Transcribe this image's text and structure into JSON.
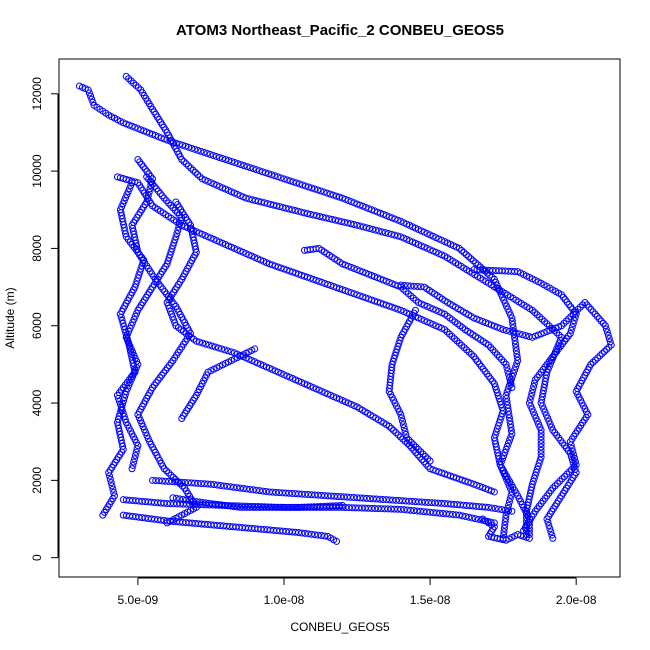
{
  "chart_data": {
    "type": "scatter",
    "title": "ATOM3 Northeast_Pacific_2 CONBEU_GEOS5",
    "xlabel": "CONBEU_GEOS5",
    "ylabel": "Altitude (m)",
    "xlim": [
      2.3e-09,
      2.15e-08
    ],
    "ylim": [
      -500,
      12900
    ],
    "x_ticks": [
      5e-09,
      1e-08,
      1.5e-08,
      2e-08
    ],
    "x_tick_labels": [
      "5.0e-09",
      "1.0e-08",
      "1.5e-08",
      "2.0e-08"
    ],
    "y_ticks": [
      0,
      2000,
      4000,
      6000,
      8000,
      10000,
      12000
    ],
    "y_tick_labels": [
      "0",
      "2000",
      "4000",
      "6000",
      "8000",
      "10000",
      "12000"
    ],
    "marker": "open-circle",
    "color": "#0000ff",
    "profiles": [
      {
        "points": [
          [
            3e-09,
            12200
          ],
          [
            3.3e-09,
            12100
          ],
          [
            3.5e-09,
            11700
          ],
          [
            4e-09,
            11450
          ],
          [
            4.5e-09,
            11250
          ],
          [
            6e-09,
            10800
          ],
          [
            8e-09,
            10300
          ],
          [
            1e-08,
            9800
          ],
          [
            1.2e-08,
            9300
          ],
          [
            1.4e-08,
            8700
          ],
          [
            1.6e-08,
            8000
          ],
          [
            1.72e-08,
            7200
          ],
          [
            1.78e-08,
            6200
          ],
          [
            1.8e-08,
            5100
          ],
          [
            1.76e-08,
            4200
          ],
          [
            1.78e-08,
            3200
          ],
          [
            1.74e-08,
            2400
          ],
          [
            1.8e-08,
            1600
          ],
          [
            1.84e-08,
            1000
          ],
          [
            1.84e-08,
            600
          ]
        ]
      },
      {
        "points": [
          [
            4.6e-09,
            12450
          ],
          [
            5.1e-09,
            12100
          ],
          [
            5.5e-09,
            11600
          ],
          [
            6e-09,
            11000
          ],
          [
            6.5e-09,
            10300
          ],
          [
            7.2e-09,
            9800
          ],
          [
            8.7e-09,
            9300
          ],
          [
            1.08e-08,
            8900
          ],
          [
            1.25e-08,
            8600
          ],
          [
            1.4e-08,
            8300
          ],
          [
            1.55e-08,
            7800
          ],
          [
            1.7e-08,
            7100
          ],
          [
            1.85e-08,
            6400
          ],
          [
            1.95e-08,
            5700
          ],
          [
            1.9e-08,
            4800
          ],
          [
            1.88e-08,
            4000
          ],
          [
            1.92e-08,
            3300
          ],
          [
            1.98e-08,
            2700
          ],
          [
            2e-08,
            2200
          ],
          [
            1.95e-08,
            1600
          ],
          [
            1.9e-08,
            1000
          ],
          [
            1.92e-08,
            500
          ]
        ]
      },
      {
        "points": [
          [
            4.3e-09,
            9850
          ],
          [
            5e-09,
            9700
          ],
          [
            5.5e-09,
            9100
          ],
          [
            6.5e-09,
            8600
          ],
          [
            8e-09,
            8100
          ],
          [
            9.5e-09,
            7600
          ],
          [
            1.1e-08,
            7200
          ],
          [
            1.25e-08,
            6800
          ],
          [
            1.4e-08,
            6400
          ],
          [
            1.55e-08,
            5900
          ],
          [
            1.65e-08,
            5200
          ],
          [
            1.72e-08,
            4500
          ],
          [
            1.75e-08,
            3800
          ],
          [
            1.72e-08,
            3100
          ],
          [
            1.74e-08,
            2400
          ],
          [
            1.78e-08,
            1700
          ],
          [
            1.76e-08,
            1100
          ],
          [
            1.75e-08,
            500
          ]
        ]
      },
      {
        "points": [
          [
            5e-09,
            10300
          ],
          [
            5.5e-09,
            9800
          ],
          [
            5.3e-09,
            9200
          ],
          [
            4.8e-09,
            8600
          ],
          [
            5e-09,
            7900
          ],
          [
            5.6e-09,
            7200
          ],
          [
            6.3e-09,
            6500
          ],
          [
            6.8e-09,
            5800
          ],
          [
            6.2e-09,
            5100
          ],
          [
            5.5e-09,
            4400
          ],
          [
            5e-09,
            3700
          ],
          [
            5.4e-09,
            3000
          ],
          [
            5.9e-09,
            2300
          ],
          [
            6.6e-09,
            1800
          ],
          [
            7e-09,
            1300
          ],
          [
            6e-09,
            900
          ]
        ]
      },
      {
        "points": [
          [
            5.3e-09,
            9850
          ],
          [
            5.9e-09,
            9300
          ],
          [
            6.5e-09,
            8800
          ],
          [
            6.3e-09,
            8300
          ],
          [
            6e-09,
            7600
          ],
          [
            5.5e-09,
            7000
          ],
          [
            5e-09,
            6400
          ],
          [
            4.6e-09,
            5700
          ],
          [
            5e-09,
            5000
          ],
          [
            4.6e-09,
            4300
          ],
          [
            4.3e-09,
            3500
          ],
          [
            4.5e-09,
            2800
          ],
          [
            4e-09,
            2200
          ],
          [
            4.2e-09,
            1600
          ],
          [
            3.8e-09,
            1100
          ]
        ]
      },
      {
        "points": [
          [
            4.8e-09,
            9700
          ],
          [
            4.4e-09,
            9000
          ],
          [
            4.6e-09,
            8300
          ],
          [
            5.2e-09,
            7700
          ],
          [
            4.9e-09,
            7000
          ],
          [
            4.4e-09,
            6300
          ],
          [
            4.7e-09,
            5500
          ],
          [
            4.9e-09,
            4800
          ],
          [
            4.3e-09,
            4200
          ],
          [
            4.6e-09,
            3500
          ],
          [
            5e-09,
            2900
          ],
          [
            4.8e-09,
            2300
          ]
        ]
      },
      {
        "points": [
          [
            6.3e-09,
            9200
          ],
          [
            6.8e-09,
            8600
          ],
          [
            7e-09,
            7900
          ],
          [
            6.5e-09,
            7200
          ],
          [
            6e-09,
            6600
          ],
          [
            6.3e-09,
            6000
          ],
          [
            7e-09,
            5600
          ],
          [
            8.3e-09,
            5300
          ],
          [
            9.5e-09,
            4900
          ],
          [
            1.1e-08,
            4400
          ],
          [
            1.25e-08,
            3900
          ],
          [
            1.36e-08,
            3400
          ],
          [
            1.43e-08,
            2900
          ],
          [
            1.5e-08,
            2300
          ],
          [
            1.65e-08,
            1900
          ],
          [
            1.72e-08,
            1700
          ]
        ]
      },
      {
        "points": [
          [
            1.07e-08,
            7950
          ],
          [
            1.12e-08,
            8000
          ],
          [
            1.2e-08,
            7600
          ],
          [
            1.3e-08,
            7300
          ],
          [
            1.4e-08,
            7000
          ],
          [
            1.46e-08,
            6600
          ],
          [
            1.55e-08,
            6300
          ],
          [
            1.62e-08,
            5900
          ],
          [
            1.7e-08,
            5500
          ],
          [
            1.76e-08,
            5000
          ],
          [
            1.78e-08,
            4400
          ]
        ]
      },
      {
        "points": [
          [
            1.4e-08,
            7050
          ],
          [
            1.48e-08,
            7000
          ],
          [
            1.56e-08,
            6600
          ],
          [
            1.65e-08,
            6200
          ],
          [
            1.75e-08,
            5900
          ],
          [
            1.85e-08,
            5700
          ],
          [
            1.95e-08,
            6000
          ],
          [
            2.03e-08,
            6600
          ],
          [
            2.1e-08,
            6000
          ],
          [
            2.12e-08,
            5500
          ],
          [
            2.05e-08,
            5000
          ],
          [
            2e-08,
            4300
          ],
          [
            2.04e-08,
            3700
          ],
          [
            1.98e-08,
            3000
          ],
          [
            2e-08,
            2400
          ],
          [
            1.92e-08,
            1800
          ],
          [
            1.86e-08,
            1200
          ],
          [
            1.82e-08,
            700
          ]
        ]
      },
      {
        "points": [
          [
            1.65e-08,
            7450
          ],
          [
            1.8e-08,
            7400
          ],
          [
            1.88e-08,
            7100
          ],
          [
            1.95e-08,
            6800
          ],
          [
            2e-08,
            6300
          ],
          [
            1.98e-08,
            5800
          ],
          [
            1.92e-08,
            5200
          ],
          [
            1.86e-08,
            4600
          ],
          [
            1.84e-08,
            4000
          ],
          [
            1.88e-08,
            3300
          ],
          [
            1.88e-08,
            2600
          ],
          [
            1.85e-08,
            1900
          ],
          [
            1.83e-08,
            1200
          ],
          [
            1.83e-08,
            600
          ]
        ]
      },
      {
        "points": [
          [
            1.45e-08,
            6400
          ],
          [
            1.4e-08,
            5700
          ],
          [
            1.37e-08,
            5000
          ],
          [
            1.36e-08,
            4300
          ],
          [
            1.4e-08,
            3700
          ],
          [
            1.42e-08,
            3100
          ],
          [
            1.5e-08,
            2500
          ]
        ]
      },
      {
        "points": [
          [
            6.5e-09,
            3600
          ],
          [
            7e-09,
            4200
          ],
          [
            7.4e-09,
            4800
          ],
          [
            8.2e-09,
            5100
          ],
          [
            9e-09,
            5400
          ]
        ]
      },
      {
        "points": [
          [
            5.5e-09,
            2000
          ],
          [
            7.5e-09,
            1900
          ],
          [
            9.5e-09,
            1700
          ],
          [
            1.15e-08,
            1600
          ],
          [
            1.35e-08,
            1500
          ],
          [
            1.55e-08,
            1400
          ],
          [
            1.7e-08,
            1300
          ],
          [
            1.78e-08,
            1200
          ]
        ]
      },
      {
        "points": [
          [
            4.5e-09,
            1500
          ],
          [
            6e-09,
            1400
          ],
          [
            8e-09,
            1350
          ],
          [
            1e-08,
            1300
          ],
          [
            1.2e-08,
            1300
          ],
          [
            1.4e-08,
            1250
          ],
          [
            1.6e-08,
            1100
          ],
          [
            1.72e-08,
            900
          ]
        ]
      },
      {
        "points": [
          [
            4.5e-09,
            1100
          ],
          [
            6e-09,
            950
          ],
          [
            7.5e-09,
            850
          ],
          [
            9e-09,
            750
          ],
          [
            1.05e-08,
            650
          ],
          [
            1.15e-08,
            550
          ],
          [
            1.18e-08,
            420
          ]
        ]
      },
      {
        "points": [
          [
            6.2e-09,
            1550
          ],
          [
            7e-09,
            1450
          ],
          [
            8.5e-09,
            1300
          ],
          [
            1.05e-08,
            1300
          ],
          [
            1.2e-08,
            1350
          ]
        ]
      },
      {
        "points": [
          [
            1.68e-08,
            1000
          ],
          [
            1.72e-08,
            800
          ],
          [
            1.7e-08,
            550
          ],
          [
            1.76e-08,
            450
          ],
          [
            1.8e-08,
            600
          ],
          [
            1.84e-08,
            500
          ]
        ]
      }
    ]
  }
}
